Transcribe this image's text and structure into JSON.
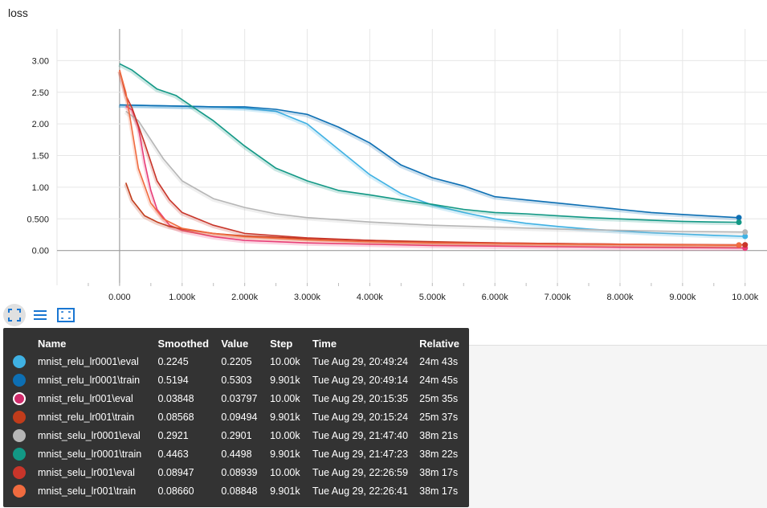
{
  "title": "loss",
  "toolbar": {
    "buttons": [
      {
        "name": "fit-domain",
        "icon": "fit-screen-icon"
      },
      {
        "name": "log-scale-toggle",
        "icon": "list-lines-icon"
      },
      {
        "name": "expand-chart",
        "icon": "expand-frame-icon"
      }
    ]
  },
  "chart_data": {
    "type": "line",
    "title": "loss",
    "xlabel": "",
    "ylabel": "",
    "xlim": [
      -1000,
      10350
    ],
    "ylim": [
      -0.55,
      3.5
    ],
    "x_ticks": [
      0,
      1000,
      2000,
      3000,
      4000,
      5000,
      6000,
      7000,
      8000,
      9000,
      10000
    ],
    "x_tick_labels": [
      "0.000",
      "1.000k",
      "2.000k",
      "3.000k",
      "4.000k",
      "5.000k",
      "6.000k",
      "7.000k",
      "8.000k",
      "9.000k",
      "10.00k"
    ],
    "y_ticks": [
      0,
      0.5,
      1,
      1.5,
      2,
      2.5,
      3
    ],
    "y_tick_labels": [
      "0.00",
      "0.500",
      "1.00",
      "1.50",
      "2.00",
      "2.50",
      "3.00"
    ],
    "grid": true,
    "series": [
      {
        "name": "mnist_relu_lr0001\\eval",
        "color": "#3fb1e3",
        "x": [
          0,
          500,
          1000,
          1500,
          2000,
          2500,
          3000,
          3500,
          4000,
          4500,
          5000,
          5500,
          6000,
          6500,
          7000,
          7500,
          8000,
          8500,
          9000,
          9500,
          10000
        ],
        "y": [
          2.3,
          2.29,
          2.28,
          2.27,
          2.25,
          2.2,
          2.0,
          1.6,
          1.2,
          0.9,
          0.72,
          0.6,
          0.5,
          0.43,
          0.38,
          0.34,
          0.31,
          0.28,
          0.26,
          0.24,
          0.2245
        ]
      },
      {
        "name": "mnist_relu_lr0001\\train",
        "color": "#0d6fb3",
        "x": [
          0,
          500,
          1000,
          1500,
          2000,
          2500,
          3000,
          3500,
          4000,
          4500,
          5000,
          5500,
          6000,
          6500,
          7000,
          7500,
          8000,
          8500,
          9000,
          9500,
          9901
        ],
        "y": [
          2.3,
          2.29,
          2.28,
          2.27,
          2.27,
          2.23,
          2.15,
          1.95,
          1.7,
          1.35,
          1.15,
          1.02,
          0.85,
          0.8,
          0.75,
          0.7,
          0.65,
          0.6,
          0.57,
          0.54,
          0.5194
        ]
      },
      {
        "name": "mnist_relu_lr001\\eval",
        "color": "#e83e79",
        "x": [
          100,
          200,
          300,
          400,
          500,
          600,
          800,
          1000,
          1500,
          2000,
          3000,
          4000,
          5000,
          6000,
          7000,
          8000,
          9000,
          10000
        ],
        "y": [
          2.28,
          2.22,
          1.95,
          1.4,
          0.95,
          0.65,
          0.4,
          0.32,
          0.22,
          0.16,
          0.12,
          0.1,
          0.08,
          0.07,
          0.06,
          0.05,
          0.045,
          0.03848
        ]
      },
      {
        "name": "mnist_relu_lr001\\train",
        "color": "#c13c1b",
        "x": [
          100,
          200,
          400,
          600,
          800,
          1000,
          1500,
          2000,
          3000,
          4000,
          5000,
          6000,
          7000,
          8000,
          9000,
          9901
        ],
        "y": [
          1.07,
          0.8,
          0.55,
          0.45,
          0.38,
          0.34,
          0.27,
          0.23,
          0.19,
          0.16,
          0.14,
          0.12,
          0.11,
          0.1,
          0.09,
          0.08568
        ]
      },
      {
        "name": "mnist_selu_lr0001\\eval",
        "color": "#b6b6b6",
        "x": [
          100,
          300,
          500,
          700,
          1000,
          1500,
          2000,
          2500,
          3000,
          4000,
          5000,
          6000,
          7000,
          8000,
          9000,
          10000
        ],
        "y": [
          2.2,
          2.05,
          1.75,
          1.45,
          1.1,
          0.82,
          0.68,
          0.58,
          0.52,
          0.45,
          0.4,
          0.37,
          0.34,
          0.32,
          0.3,
          0.2921
        ]
      },
      {
        "name": "mnist_selu_lr0001\\train",
        "color": "#129885",
        "x": [
          0,
          200,
          400,
          600,
          900,
          1200,
          1500,
          2000,
          2500,
          3000,
          3500,
          4000,
          4500,
          5000,
          5500,
          6000,
          6500,
          7000,
          7500,
          8000,
          8500,
          9000,
          9500,
          9901
        ],
        "y": [
          2.95,
          2.85,
          2.7,
          2.55,
          2.45,
          2.25,
          2.05,
          1.65,
          1.3,
          1.1,
          0.95,
          0.88,
          0.8,
          0.73,
          0.65,
          0.6,
          0.58,
          0.55,
          0.52,
          0.5,
          0.48,
          0.46,
          0.45,
          0.4463
        ]
      },
      {
        "name": "mnist_selu_lr001\\eval",
        "color": "#c8352a",
        "x": [
          0,
          100,
          200,
          400,
          600,
          800,
          1000,
          1500,
          2000,
          3000,
          4000,
          5000,
          6000,
          7000,
          8000,
          9000,
          10000
        ],
        "y": [
          2.85,
          2.45,
          2.25,
          1.7,
          1.1,
          0.8,
          0.6,
          0.4,
          0.27,
          0.2,
          0.16,
          0.13,
          0.12,
          0.11,
          0.1,
          0.095,
          0.08947
        ]
      },
      {
        "name": "mnist_selu_lr001\\train",
        "color": "#f06b3f",
        "x": [
          0,
          100,
          200,
          300,
          500,
          700,
          1000,
          1500,
          2000,
          3000,
          4000,
          5000,
          6000,
          7000,
          8000,
          9000,
          9901
        ],
        "y": [
          2.85,
          2.5,
          1.9,
          1.3,
          0.75,
          0.5,
          0.35,
          0.27,
          0.22,
          0.17,
          0.14,
          0.12,
          0.11,
          0.1,
          0.095,
          0.09,
          0.0866
        ]
      }
    ]
  },
  "tooltip": {
    "headers": {
      "name": "Name",
      "smoothed": "Smoothed",
      "value": "Value",
      "step": "Step",
      "time": "Time",
      "relative": "Relative"
    },
    "rows": [
      {
        "name": "mnist_relu_lr0001\\eval",
        "color": "#3fb1e3",
        "smoothed": "0.2245",
        "value": "0.2205",
        "step": "10.00k",
        "time": "Tue Aug 29, 20:49:24",
        "relative": "24m 43s"
      },
      {
        "name": "mnist_relu_lr0001\\train",
        "color": "#0d6fb3",
        "smoothed": "0.5194",
        "value": "0.5303",
        "step": "9.901k",
        "time": "Tue Aug 29, 20:49:14",
        "relative": "24m 45s"
      },
      {
        "name": "mnist_relu_lr001\\eval",
        "color": "#d02b6b",
        "smoothed": "0.03848",
        "value": "0.03797",
        "step": "10.00k",
        "time": "Tue Aug 29, 20:15:35",
        "relative": "25m 35s"
      },
      {
        "name": "mnist_relu_lr001\\train",
        "color": "#c13c1b",
        "smoothed": "0.08568",
        "value": "0.09494",
        "step": "9.901k",
        "time": "Tue Aug 29, 20:15:24",
        "relative": "25m 37s"
      },
      {
        "name": "mnist_selu_lr0001\\eval",
        "color": "#b6b6b6",
        "smoothed": "0.2921",
        "value": "0.2901",
        "step": "10.00k",
        "time": "Tue Aug 29, 21:47:40",
        "relative": "38m 21s"
      },
      {
        "name": "mnist_selu_lr0001\\train",
        "color": "#129885",
        "smoothed": "0.4463",
        "value": "0.4498",
        "step": "9.901k",
        "time": "Tue Aug 29, 21:47:23",
        "relative": "38m 22s"
      },
      {
        "name": "mnist_selu_lr001\\eval",
        "color": "#c8352a",
        "smoothed": "0.08947",
        "value": "0.08939",
        "step": "10.00k",
        "time": "Tue Aug 29, 22:26:59",
        "relative": "38m 17s"
      },
      {
        "name": "mnist_selu_lr001\\train",
        "color": "#f06b3f",
        "smoothed": "0.08660",
        "value": "0.08848",
        "step": "9.901k",
        "time": "Tue Aug 29, 22:26:41",
        "relative": "38m 17s"
      }
    ]
  }
}
